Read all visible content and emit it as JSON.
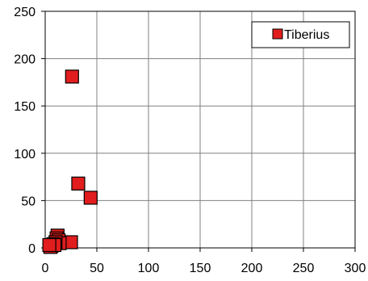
{
  "chart_data": {
    "type": "scatter",
    "title": "",
    "xlabel": "",
    "ylabel": "",
    "xlim": [
      0,
      300
    ],
    "ylim": [
      0,
      250
    ],
    "x_ticks": [
      0,
      50,
      100,
      150,
      200,
      250,
      300
    ],
    "y_ticks": [
      0,
      50,
      100,
      150,
      200,
      250
    ],
    "grid": true,
    "legend_position": "top-right",
    "series": [
      {
        "name": "Tiberius",
        "color": "#e11d1d",
        "marker": "square",
        "points": [
          {
            "x": 26,
            "y": 181
          },
          {
            "x": 32,
            "y": 68
          },
          {
            "x": 44,
            "y": 53
          },
          {
            "x": 25,
            "y": 6
          },
          {
            "x": 12,
            "y": 13
          },
          {
            "x": 11,
            "y": 10
          },
          {
            "x": 13,
            "y": 8
          },
          {
            "x": 14,
            "y": 5
          },
          {
            "x": 10,
            "y": 6
          },
          {
            "x": 8,
            "y": 4
          },
          {
            "x": 6,
            "y": 2
          },
          {
            "x": 5,
            "y": 1
          },
          {
            "x": 9,
            "y": 3
          },
          {
            "x": 4,
            "y": 3
          }
        ]
      }
    ]
  }
}
